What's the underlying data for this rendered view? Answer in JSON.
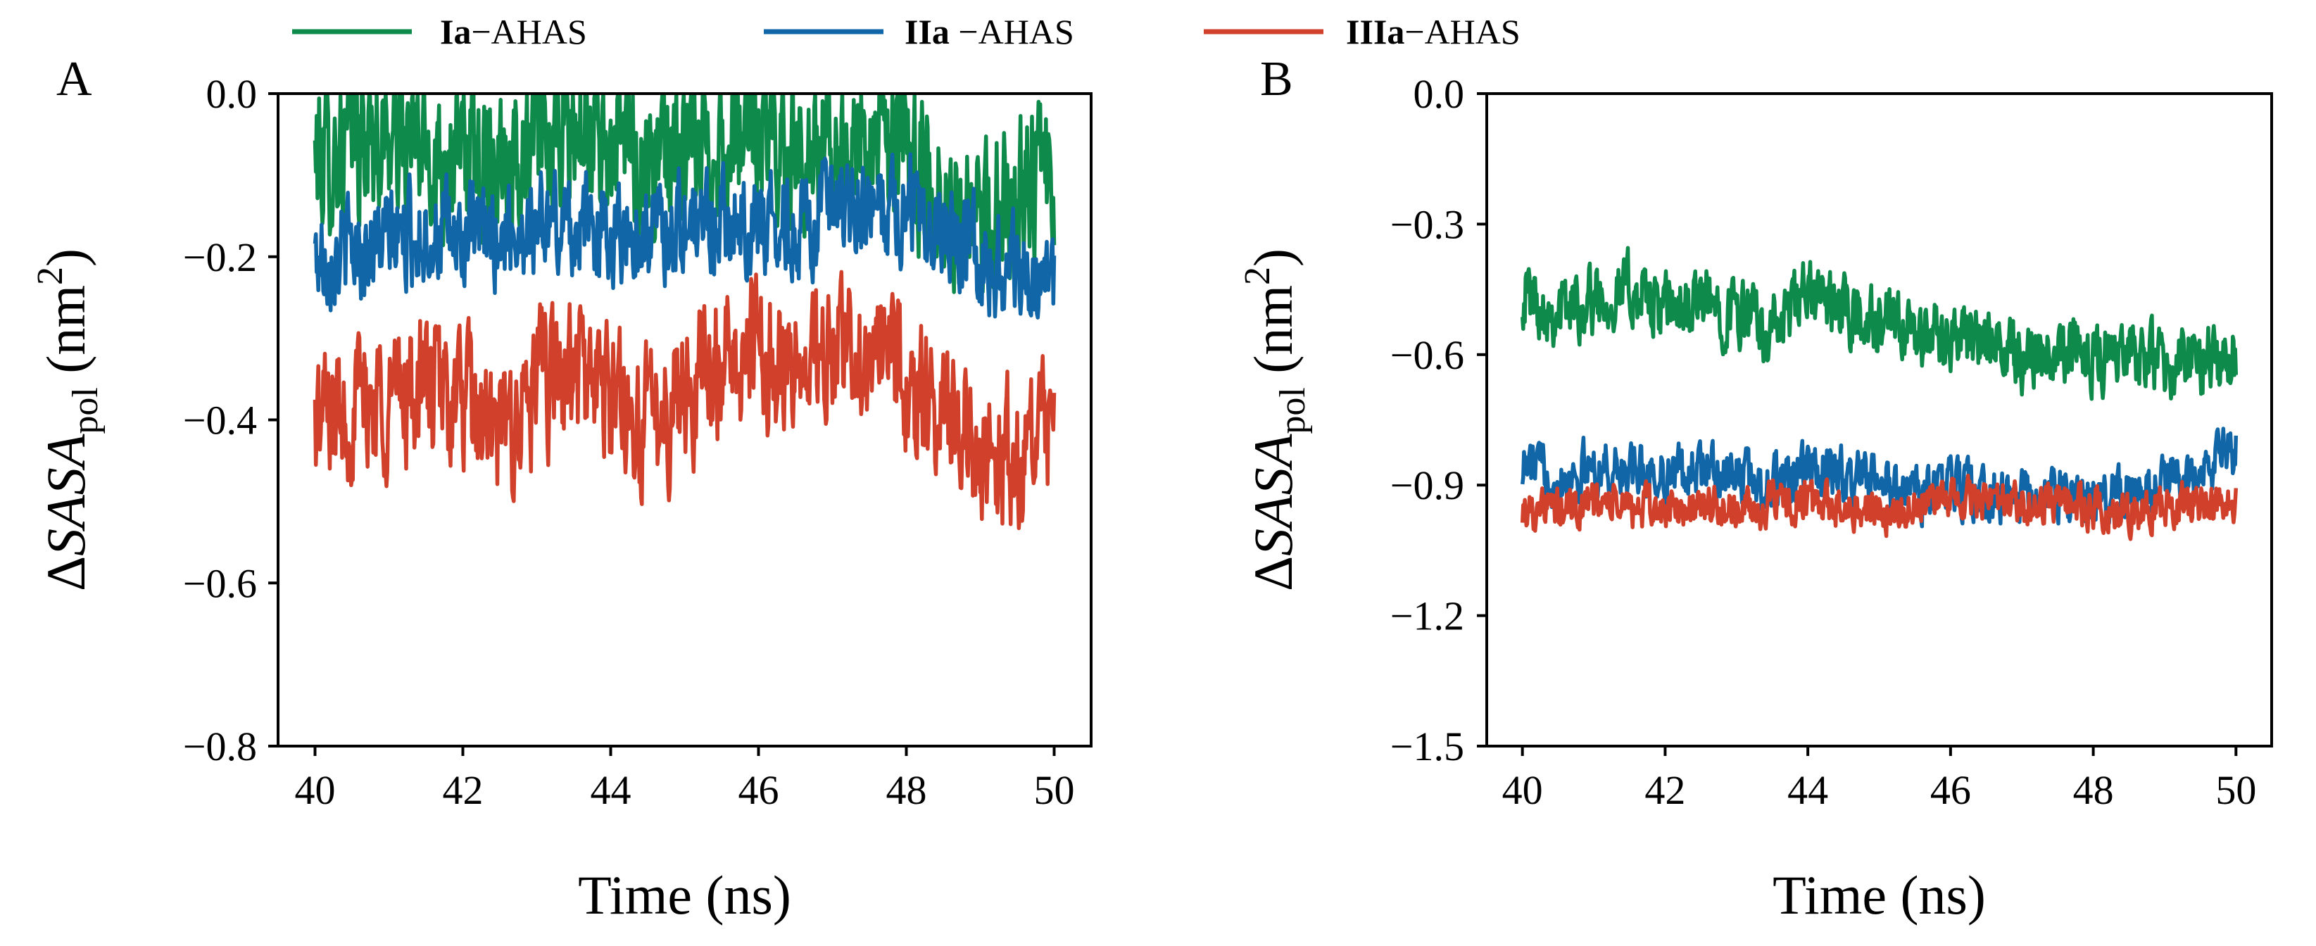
{
  "legend": {
    "items": [
      {
        "bold": "Ia",
        "rest": "−AHAS",
        "color": "#0e8a4a"
      },
      {
        "bold": "IIa",
        "rest": " −AHAS",
        "color": "#1166a8"
      },
      {
        "bold": "IIIa",
        "rest": "−AHAS",
        "color": "#d0402a"
      }
    ]
  },
  "chart_data": [
    {
      "panel": "A",
      "type": "line",
      "xlabel": "Time (ns)",
      "ylabel": {
        "prefix": "Δ",
        "main": "SASA",
        "sub": "pol",
        "unit_open": " (nm",
        "sup": "2",
        "unit_close": ")"
      },
      "xlim": [
        39.5,
        50.5
      ],
      "ylim": [
        -0.8,
        0.0
      ],
      "xticks": [
        40,
        42,
        44,
        46,
        48,
        50
      ],
      "xtick_labels": [
        "40",
        "42",
        "44",
        "46",
        "48",
        "50"
      ],
      "yticks": [
        0.0,
        -0.2,
        -0.4,
        -0.6,
        -0.8
      ],
      "ytick_labels": [
        "0.0",
        "−0.2",
        "−0.4",
        "−0.6",
        "−0.8"
      ],
      "series": [
        {
          "name": "Ia−AHAS",
          "color": "#0e8a4a",
          "x": [
            40,
            40.5,
            41,
            41.5,
            42,
            42.5,
            43,
            43.5,
            44,
            44.5,
            45,
            45.5,
            46,
            46.5,
            47,
            47.5,
            48,
            48.5,
            49,
            49.5,
            50
          ],
          "mean": [
            -0.08,
            -0.06,
            -0.05,
            -0.07,
            -0.08,
            -0.07,
            -0.06,
            -0.05,
            -0.06,
            -0.08,
            -0.07,
            -0.06,
            -0.05,
            -0.06,
            -0.07,
            -0.06,
            -0.08,
            -0.12,
            -0.18,
            -0.1,
            -0.12
          ],
          "noise": 0.11
        },
        {
          "name": "IIa−AHAS",
          "color": "#1166a8",
          "x": [
            40,
            40.5,
            41,
            41.5,
            42,
            42.5,
            43,
            43.5,
            44,
            44.5,
            45,
            45.5,
            46,
            46.5,
            47,
            47.5,
            48,
            48.5,
            49,
            49.5,
            50
          ],
          "mean": [
            -0.2,
            -0.19,
            -0.18,
            -0.17,
            -0.18,
            -0.17,
            -0.16,
            -0.16,
            -0.17,
            -0.17,
            -0.16,
            -0.15,
            -0.16,
            -0.16,
            -0.15,
            -0.15,
            -0.14,
            -0.15,
            -0.2,
            -0.22,
            -0.24
          ],
          "noise": 0.07
        },
        {
          "name": "IIIa−AHAS",
          "color": "#d0402a",
          "x": [
            40,
            40.5,
            41,
            41.5,
            42,
            42.5,
            43,
            43.5,
            44,
            44.5,
            45,
            45.5,
            46,
            46.5,
            47,
            47.5,
            48,
            48.5,
            49,
            49.5,
            50
          ],
          "mean": [
            -0.4,
            -0.38,
            -0.37,
            -0.36,
            -0.38,
            -0.43,
            -0.36,
            -0.34,
            -0.37,
            -0.41,
            -0.36,
            -0.33,
            -0.31,
            -0.34,
            -0.32,
            -0.31,
            -0.36,
            -0.4,
            -0.42,
            -0.46,
            -0.42
          ],
          "noise": 0.1
        }
      ]
    },
    {
      "panel": "B",
      "type": "line",
      "xlabel": "Time (ns)",
      "ylabel": {
        "prefix": "Δ",
        "main": "SASA",
        "sub": "pol",
        "unit_open": " (nm",
        "sup": "2",
        "unit_close": ")"
      },
      "xlim": [
        39.5,
        50.5
      ],
      "ylim": [
        -1.5,
        0.0
      ],
      "xticks": [
        40,
        42,
        44,
        46,
        48,
        50
      ],
      "xtick_labels": [
        "40",
        "42",
        "44",
        "46",
        "48",
        "50"
      ],
      "yticks": [
        0.0,
        -0.3,
        -0.6,
        -0.9,
        -1.2,
        -1.5
      ],
      "ytick_labels": [
        "0.0",
        "−0.3",
        "−0.6",
        "−0.9",
        "−1.2",
        "−1.5"
      ],
      "series": [
        {
          "name": "Ia−AHAS",
          "color": "#0e8a4a",
          "x": [
            40,
            40.5,
            41,
            41.5,
            42,
            42.5,
            43,
            43.5,
            44,
            44.5,
            45,
            45.5,
            46,
            46.5,
            47,
            47.5,
            48,
            48.5,
            49,
            49.5,
            50
          ],
          "mean": [
            -0.45,
            -0.5,
            -0.47,
            -0.45,
            -0.5,
            -0.48,
            -0.5,
            -0.55,
            -0.46,
            -0.5,
            -0.53,
            -0.56,
            -0.55,
            -0.58,
            -0.6,
            -0.58,
            -0.6,
            -0.6,
            -0.62,
            -0.62,
            -0.6
          ],
          "noise": 0.09
        },
        {
          "name": "IIa−AHAS",
          "color": "#1166a8",
          "x": [
            40,
            40.5,
            41,
            41.5,
            42,
            42.5,
            43,
            43.5,
            44,
            44.5,
            45,
            45.5,
            46,
            46.5,
            47,
            47.5,
            48,
            48.5,
            49,
            49.5,
            50
          ],
          "mean": [
            -0.85,
            -0.88,
            -0.86,
            -0.87,
            -0.88,
            -0.86,
            -0.88,
            -0.9,
            -0.87,
            -0.88,
            -0.9,
            -0.92,
            -0.9,
            -0.92,
            -0.93,
            -0.92,
            -0.94,
            -0.92,
            -0.9,
            -0.85,
            -0.82
          ],
          "noise": 0.07
        },
        {
          "name": "IIIa−AHAS",
          "color": "#d0402a",
          "x": [
            40,
            40.5,
            41,
            41.5,
            42,
            42.5,
            43,
            43.5,
            44,
            44.5,
            45,
            45.5,
            46,
            46.5,
            47,
            47.5,
            48,
            48.5,
            49,
            49.5,
            50
          ],
          "mean": [
            -0.95,
            -0.96,
            -0.94,
            -0.95,
            -0.96,
            -0.95,
            -0.96,
            -0.95,
            -0.94,
            -0.95,
            -0.96,
            -0.95,
            -0.93,
            -0.94,
            -0.95,
            -0.94,
            -0.95,
            -0.96,
            -0.95,
            -0.94,
            -0.93
          ],
          "noise": 0.055
        }
      ]
    }
  ]
}
